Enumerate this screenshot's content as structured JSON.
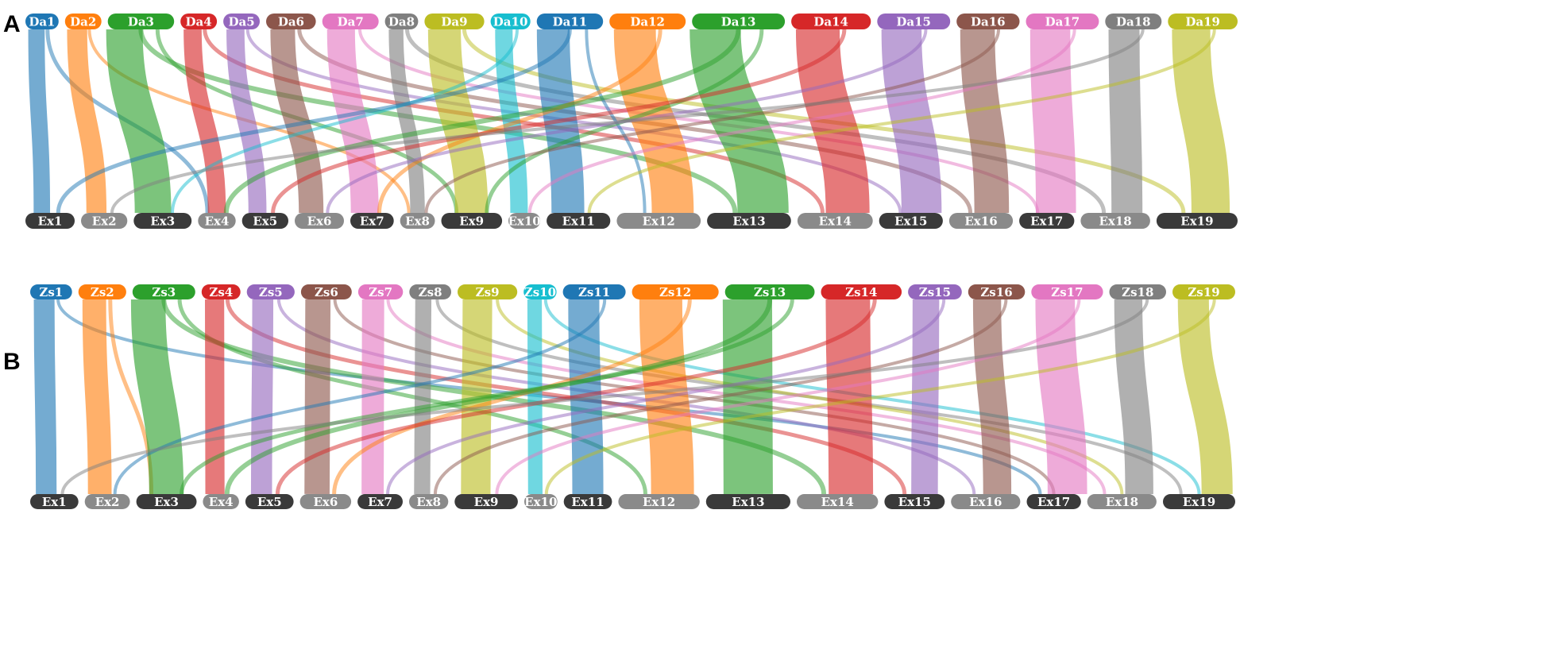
{
  "panels": [
    {
      "letter": "A",
      "top_row": [
        {
          "label": "Da1",
          "color": "#1f77b4",
          "w": 0.5
        },
        {
          "label": "Da2",
          "color": "#ff7f0e",
          "w": 0.55
        },
        {
          "label": "Da3",
          "color": "#2ca02c",
          "w": 1.0
        },
        {
          "label": "Da4",
          "color": "#d62728",
          "w": 0.55
        },
        {
          "label": "Da5",
          "color": "#9467bd",
          "w": 0.55
        },
        {
          "label": "Da6",
          "color": "#8c564b",
          "w": 0.75
        },
        {
          "label": "Da7",
          "color": "#e377c2",
          "w": 0.85
        },
        {
          "label": "Da8",
          "color": "#7f7f7f",
          "w": 0.5
        },
        {
          "label": "Da9",
          "color": "#bcbd22",
          "w": 0.9
        },
        {
          "label": "Da10",
          "color": "#17becf",
          "w": 0.6
        },
        {
          "label": "Da11",
          "color": "#1f77b4",
          "w": 1.0
        },
        {
          "label": "Da12",
          "color": "#ff7f0e",
          "w": 1.15
        },
        {
          "label": "Da13",
          "color": "#2ca02c",
          "w": 1.4
        },
        {
          "label": "Da14",
          "color": "#d62728",
          "w": 1.2
        },
        {
          "label": "Da15",
          "color": "#9467bd",
          "w": 1.1
        },
        {
          "label": "Da16",
          "color": "#8c564b",
          "w": 0.95
        },
        {
          "label": "Da17",
          "color": "#e377c2",
          "w": 1.1
        },
        {
          "label": "Da18",
          "color": "#7f7f7f",
          "w": 0.85
        },
        {
          "label": "Da19",
          "color": "#bcbd22",
          "w": 1.05
        }
      ],
      "bottom_row": [
        {
          "label": "Ex1",
          "color": "#3a3a3a",
          "w": 0.85
        },
        {
          "label": "Ex2",
          "color": "#8a8a8a",
          "w": 0.8
        },
        {
          "label": "Ex3",
          "color": "#3a3a3a",
          "w": 1.0
        },
        {
          "label": "Ex4",
          "color": "#8a8a8a",
          "w": 0.65
        },
        {
          "label": "Ex5",
          "color": "#3a3a3a",
          "w": 0.8
        },
        {
          "label": "Ex6",
          "color": "#8a8a8a",
          "w": 0.85
        },
        {
          "label": "Ex7",
          "color": "#3a3a3a",
          "w": 0.75
        },
        {
          "label": "Ex8",
          "color": "#8a8a8a",
          "w": 0.6
        },
        {
          "label": "Ex9",
          "color": "#3a3a3a",
          "w": 1.05
        },
        {
          "label": "Ex10",
          "color": "#8a8a8a",
          "w": 0.55
        },
        {
          "label": "Ex11",
          "color": "#3a3a3a",
          "w": 1.1
        },
        {
          "label": "Ex12",
          "color": "#8a8a8a",
          "w": 1.45
        },
        {
          "label": "Ex13",
          "color": "#3a3a3a",
          "w": 1.45
        },
        {
          "label": "Ex14",
          "color": "#8a8a8a",
          "w": 1.3
        },
        {
          "label": "Ex15",
          "color": "#3a3a3a",
          "w": 1.1
        },
        {
          "label": "Ex16",
          "color": "#8a8a8a",
          "w": 1.1
        },
        {
          "label": "Ex17",
          "color": "#3a3a3a",
          "w": 0.95
        },
        {
          "label": "Ex18",
          "color": "#8a8a8a",
          "w": 1.2
        },
        {
          "label": "Ex19",
          "color": "#3a3a3a",
          "w": 1.4
        }
      ]
    },
    {
      "letter": "B",
      "top_row": [
        {
          "label": "Zs1",
          "color": "#1f77b4",
          "w": 0.7
        },
        {
          "label": "Zs2",
          "color": "#ff7f0e",
          "w": 0.8
        },
        {
          "label": "Zs3",
          "color": "#2ca02c",
          "w": 1.05
        },
        {
          "label": "Zs4",
          "color": "#d62728",
          "w": 0.65
        },
        {
          "label": "Zs5",
          "color": "#9467bd",
          "w": 0.8
        },
        {
          "label": "Zs6",
          "color": "#8c564b",
          "w": 0.85
        },
        {
          "label": "Zs7",
          "color": "#e377c2",
          "w": 0.75
        },
        {
          "label": "Zs8",
          "color": "#7f7f7f",
          "w": 0.7
        },
        {
          "label": "Zs9",
          "color": "#bcbd22",
          "w": 1.0
        },
        {
          "label": "Zs10",
          "color": "#17becf",
          "w": 0.55
        },
        {
          "label": "Zs11",
          "color": "#1f77b4",
          "w": 1.05
        },
        {
          "label": "Zs12",
          "color": "#ff7f0e",
          "w": 1.45
        },
        {
          "label": "Zs13",
          "color": "#2ca02c",
          "w": 1.5
        },
        {
          "label": "Zs14",
          "color": "#d62728",
          "w": 1.35
        },
        {
          "label": "Zs15",
          "color": "#9467bd",
          "w": 0.9
        },
        {
          "label": "Zs16",
          "color": "#8c564b",
          "w": 0.95
        },
        {
          "label": "Zs17",
          "color": "#e377c2",
          "w": 1.2
        },
        {
          "label": "Zs18",
          "color": "#7f7f7f",
          "w": 0.95
        },
        {
          "label": "Zs19",
          "color": "#bcbd22",
          "w": 1.05
        }
      ],
      "bottom_row": [
        {
          "label": "Ex1",
          "color": "#3a3a3a",
          "w": 0.8
        },
        {
          "label": "Ex2",
          "color": "#8a8a8a",
          "w": 0.75
        },
        {
          "label": "Ex3",
          "color": "#3a3a3a",
          "w": 1.0
        },
        {
          "label": "Ex4",
          "color": "#8a8a8a",
          "w": 0.6
        },
        {
          "label": "Ex5",
          "color": "#3a3a3a",
          "w": 0.8
        },
        {
          "label": "Ex6",
          "color": "#8a8a8a",
          "w": 0.85
        },
        {
          "label": "Ex7",
          "color": "#3a3a3a",
          "w": 0.75
        },
        {
          "label": "Ex8",
          "color": "#8a8a8a",
          "w": 0.65
        },
        {
          "label": "Ex9",
          "color": "#3a3a3a",
          "w": 1.05
        },
        {
          "label": "Ex10",
          "color": "#8a8a8a",
          "w": 0.55
        },
        {
          "label": "Ex11",
          "color": "#3a3a3a",
          "w": 0.8
        },
        {
          "label": "Ex12",
          "color": "#8a8a8a",
          "w": 1.35
        },
        {
          "label": "Ex13",
          "color": "#3a3a3a",
          "w": 1.4
        },
        {
          "label": "Ex14",
          "color": "#8a8a8a",
          "w": 1.35
        },
        {
          "label": "Ex15",
          "color": "#3a3a3a",
          "w": 1.0
        },
        {
          "label": "Ex16",
          "color": "#8a8a8a",
          "w": 1.15
        },
        {
          "label": "Ex17",
          "color": "#3a3a3a",
          "w": 0.9
        },
        {
          "label": "Ex18",
          "color": "#8a8a8a",
          "w": 1.15
        },
        {
          "label": "Ex19",
          "color": "#3a3a3a",
          "w": 1.2
        }
      ]
    }
  ],
  "links": [
    [
      [
        0,
        0,
        0.9
      ],
      [
        0,
        3,
        0.5
      ],
      [
        1,
        1,
        1.0
      ],
      [
        1,
        7,
        0.4
      ],
      [
        2,
        2,
        1.0
      ],
      [
        2,
        12,
        0.6
      ],
      [
        2,
        8,
        0.5
      ],
      [
        3,
        3,
        0.9
      ],
      [
        3,
        13,
        0.5
      ],
      [
        4,
        4,
        0.9
      ],
      [
        4,
        14,
        0.4
      ],
      [
        5,
        5,
        0.9
      ],
      [
        5,
        15,
        0.5
      ],
      [
        6,
        6,
        0.9
      ],
      [
        6,
        16,
        0.4
      ],
      [
        7,
        7,
        0.8
      ],
      [
        7,
        17,
        0.5
      ],
      [
        8,
        8,
        1.0
      ],
      [
        8,
        18,
        0.5
      ],
      [
        9,
        9,
        0.8
      ],
      [
        9,
        2,
        0.4
      ],
      [
        10,
        10,
        0.9
      ],
      [
        10,
        0,
        0.5
      ],
      [
        10,
        11,
        0.4
      ],
      [
        11,
        11,
        1.0
      ],
      [
        11,
        6,
        0.5
      ],
      [
        12,
        12,
        1.0
      ],
      [
        12,
        3,
        0.6
      ],
      [
        12,
        8,
        0.5
      ],
      [
        13,
        13,
        1.0
      ],
      [
        13,
        4,
        0.5
      ],
      [
        14,
        14,
        1.0
      ],
      [
        14,
        5,
        0.4
      ],
      [
        15,
        15,
        1.0
      ],
      [
        15,
        7,
        0.4
      ],
      [
        16,
        16,
        1.0
      ],
      [
        16,
        9,
        0.4
      ],
      [
        17,
        17,
        1.0
      ],
      [
        17,
        1,
        0.4
      ],
      [
        18,
        18,
        1.0
      ],
      [
        18,
        10,
        0.4
      ]
    ],
    [
      [
        0,
        0,
        0.9
      ],
      [
        0,
        16,
        0.4
      ],
      [
        1,
        1,
        0.9
      ],
      [
        1,
        2,
        0.5
      ],
      [
        2,
        2,
        1.0
      ],
      [
        2,
        13,
        0.6
      ],
      [
        2,
        11,
        0.5
      ],
      [
        3,
        3,
        0.9
      ],
      [
        3,
        14,
        0.5
      ],
      [
        4,
        4,
        0.8
      ],
      [
        4,
        15,
        0.4
      ],
      [
        5,
        5,
        0.9
      ],
      [
        5,
        16,
        0.4
      ],
      [
        6,
        6,
        0.9
      ],
      [
        6,
        17,
        0.4
      ],
      [
        7,
        7,
        0.7
      ],
      [
        7,
        18,
        0.4
      ],
      [
        8,
        8,
        0.9
      ],
      [
        8,
        17,
        0.4
      ],
      [
        9,
        9,
        0.8
      ],
      [
        9,
        18,
        0.4
      ],
      [
        10,
        10,
        0.9
      ],
      [
        10,
        1,
        0.4
      ],
      [
        11,
        11,
        0.9
      ],
      [
        11,
        5,
        0.5
      ],
      [
        12,
        12,
        1.0
      ],
      [
        12,
        3,
        0.6
      ],
      [
        12,
        2,
        0.5
      ],
      [
        13,
        13,
        1.0
      ],
      [
        13,
        4,
        0.5
      ],
      [
        14,
        14,
        0.9
      ],
      [
        14,
        6,
        0.4
      ],
      [
        15,
        15,
        0.9
      ],
      [
        15,
        7,
        0.4
      ],
      [
        16,
        16,
        1.0
      ],
      [
        16,
        8,
        0.4
      ],
      [
        17,
        17,
        0.9
      ],
      [
        17,
        0,
        0.4
      ],
      [
        18,
        18,
        0.9
      ],
      [
        18,
        9,
        0.4
      ]
    ]
  ]
}
